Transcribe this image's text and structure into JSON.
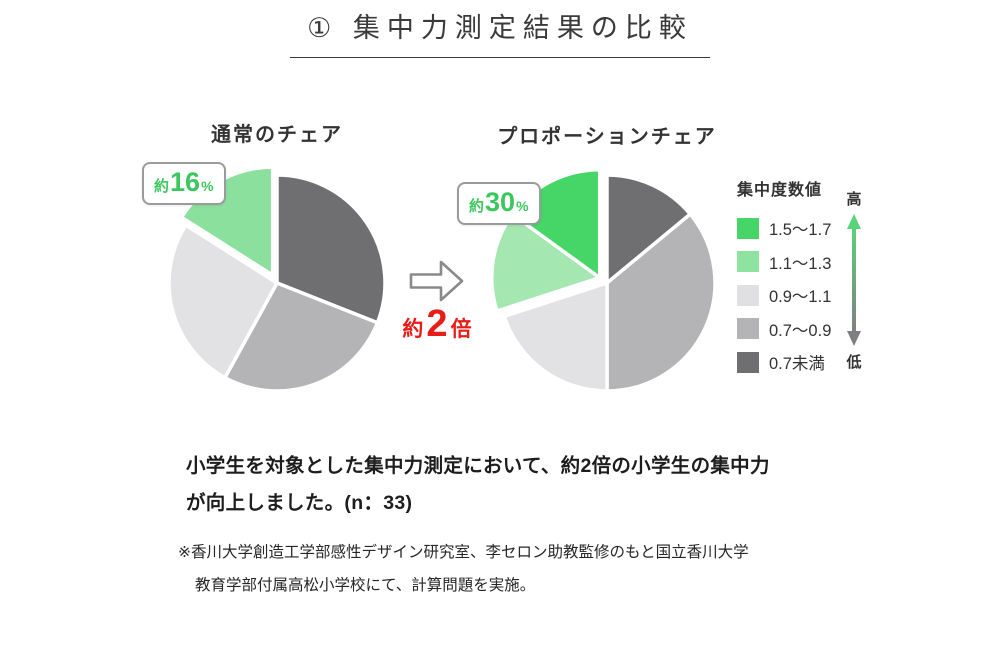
{
  "title": {
    "text": "① 集中力測定結果の比較"
  },
  "chart_data": [
    {
      "type": "pie",
      "title": "通常のチェア",
      "callout": {
        "prefix": "約",
        "number": "16",
        "suffix": "%",
        "color": "#3cc75e"
      },
      "start_angle_deg": 0,
      "direction": "clockwise",
      "unit": "%",
      "slices": [
        {
          "label": "0.7未満",
          "value": 31,
          "color": "#6f6f71",
          "exploded": false
        },
        {
          "label": "0.7〜0.9",
          "value": 27,
          "color": "#b4b4b6",
          "exploded": false
        },
        {
          "label": "0.9〜1.1",
          "value": 26,
          "color": "#e2e2e4",
          "exploded": false
        },
        {
          "label": "1.1〜1.3",
          "value": 16,
          "color": "#8be09d",
          "exploded": true
        }
      ]
    },
    {
      "type": "pie",
      "title": "プロポーションチェア",
      "callout": {
        "prefix": "約",
        "number": "30",
        "suffix": "%",
        "color": "#3cc75e"
      },
      "start_angle_deg": 0,
      "direction": "clockwise",
      "unit": "%",
      "slices": [
        {
          "label": "0.7未満",
          "value": 14,
          "color": "#6f6f71",
          "exploded": false
        },
        {
          "label": "0.7〜0.9",
          "value": 36,
          "color": "#b4b4b6",
          "exploded": false
        },
        {
          "label": "0.9〜1.1",
          "value": 20,
          "color": "#e2e2e4",
          "exploded": false
        },
        {
          "label": "1.1〜1.3",
          "value": 15,
          "color": "#a5e7b1",
          "exploded": true
        },
        {
          "label": "1.5〜1.7",
          "value": 15,
          "color": "#46d667",
          "exploded": true
        }
      ]
    }
  ],
  "transition": {
    "arrow": "right-arrow",
    "arrow_color": "#8a8a8c",
    "label_prefix": "約",
    "label_number": "2",
    "label_suffix": "倍",
    "label_color": "#e71d18"
  },
  "legend": {
    "title": "集中度数値",
    "items": [
      {
        "label": "1.5〜1.7",
        "color": "#46d667"
      },
      {
        "label": "1.1〜1.3",
        "color": "#8fe3a0"
      },
      {
        "label": "0.9〜1.1",
        "color": "#e0e0e2"
      },
      {
        "label": "0.7〜0.9",
        "color": "#b4b4b6"
      },
      {
        "label": "0.7未満",
        "color": "#6f6f71"
      }
    ],
    "axis": {
      "high_label": "高",
      "low_label": "低",
      "top_color": "#5bd37a",
      "bottom_color": "#7f7f81"
    }
  },
  "description": {
    "lines": [
      "小学生を対象とした集中力測定において、約2倍の小学生の集中力",
      "が向上しました。(n：33)"
    ]
  },
  "footnote": {
    "lines": [
      "※香川大学創造工学部感性デザイン研究室、李セロン助教監修のもと国立香川大学",
      "教育学部付属高松小学校にて、計算問題を実施。"
    ]
  }
}
